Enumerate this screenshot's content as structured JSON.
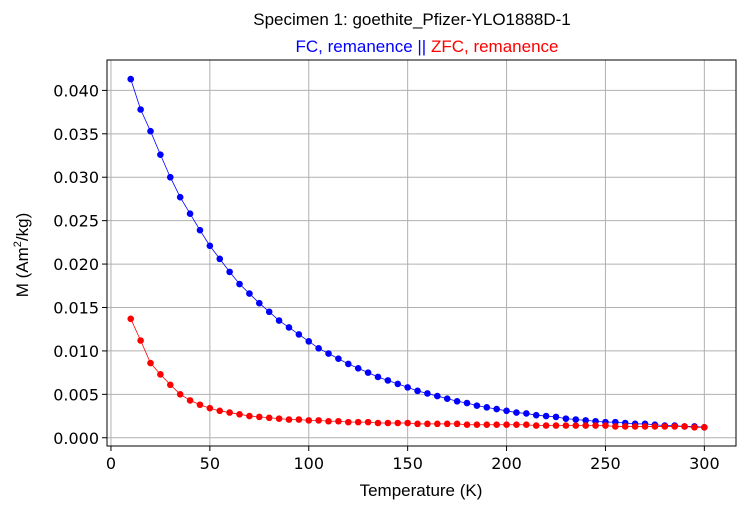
{
  "chart_data": {
    "type": "line",
    "title": "Specimen 1: goethite_Pfizer-YLO1888D-1",
    "subtitle_parts": [
      {
        "text": "FC, remanence",
        "color": "#0000ff"
      },
      {
        "text": " || ",
        "color": "#0000ff"
      },
      {
        "text": "ZFC, remanence",
        "color": "#ff0000"
      }
    ],
    "xlabel": "Temperature (K)",
    "ylabel_main": "M (Am",
    "ylabel_sup": "2",
    "ylabel_tail": "/kg)",
    "xlim": [
      -2,
      316
    ],
    "ylim": [
      -0.00095,
      0.0435
    ],
    "xticks": [
      0,
      50,
      100,
      150,
      200,
      250,
      300
    ],
    "xtick_labels": [
      "0",
      "50",
      "100",
      "150",
      "200",
      "250",
      "300"
    ],
    "yticks": [
      0.0,
      0.005,
      0.01,
      0.015,
      0.02,
      0.025,
      0.03,
      0.035,
      0.04
    ],
    "ytick_labels": [
      "0.000",
      "0.005",
      "0.010",
      "0.015",
      "0.020",
      "0.025",
      "0.030",
      "0.035",
      "0.040"
    ],
    "grid": true,
    "series": [
      {
        "name": "FC, remanence",
        "color": "#0000ff",
        "x": [
          10,
          15,
          20,
          25,
          30,
          35,
          40,
          45,
          50,
          55,
          60,
          65,
          70,
          75,
          80,
          85,
          90,
          95,
          100,
          105,
          110,
          115,
          120,
          125,
          130,
          135,
          140,
          145,
          150,
          155,
          160,
          165,
          170,
          175,
          180,
          185,
          190,
          195,
          200,
          205,
          210,
          215,
          220,
          225,
          230,
          235,
          240,
          245,
          250,
          255,
          260,
          265,
          270,
          275,
          280,
          285,
          290,
          295,
          300
        ],
        "y": [
          0.0413,
          0.0378,
          0.0353,
          0.0326,
          0.03,
          0.0277,
          0.0258,
          0.0239,
          0.0221,
          0.0206,
          0.0191,
          0.0177,
          0.0166,
          0.0155,
          0.0145,
          0.0135,
          0.0127,
          0.0119,
          0.0111,
          0.0103,
          0.0097,
          0.0091,
          0.0085,
          0.008,
          0.0075,
          0.007,
          0.0066,
          0.0062,
          0.0058,
          0.0054,
          0.0051,
          0.0048,
          0.0045,
          0.0042,
          0.004,
          0.0037,
          0.0035,
          0.0033,
          0.0031,
          0.0029,
          0.0028,
          0.0026,
          0.0025,
          0.0024,
          0.0022,
          0.0021,
          0.002,
          0.0019,
          0.0018,
          0.0018,
          0.0017,
          0.0016,
          0.0016,
          0.0015,
          0.0014,
          0.0014,
          0.0013,
          0.0013,
          0.0012
        ]
      },
      {
        "name": "ZFC, remanence",
        "color": "#ff0000",
        "x": [
          10,
          15,
          20,
          25,
          30,
          35,
          40,
          45,
          50,
          55,
          60,
          65,
          70,
          75,
          80,
          85,
          90,
          95,
          100,
          105,
          110,
          115,
          120,
          125,
          130,
          135,
          140,
          145,
          150,
          155,
          160,
          165,
          170,
          175,
          180,
          185,
          190,
          195,
          200,
          205,
          210,
          215,
          220,
          225,
          230,
          235,
          240,
          245,
          250,
          255,
          260,
          265,
          270,
          275,
          280,
          285,
          290,
          295,
          300
        ],
        "y": [
          0.0137,
          0.0112,
          0.0086,
          0.0073,
          0.0061,
          0.005,
          0.0043,
          0.0038,
          0.0034,
          0.0031,
          0.0029,
          0.0027,
          0.0025,
          0.0024,
          0.0023,
          0.0022,
          0.0021,
          0.0021,
          0.002,
          0.002,
          0.0019,
          0.0019,
          0.0018,
          0.0018,
          0.0018,
          0.0017,
          0.0017,
          0.0017,
          0.0017,
          0.0016,
          0.0016,
          0.0016,
          0.0016,
          0.0016,
          0.0015,
          0.0015,
          0.0015,
          0.0015,
          0.0015,
          0.0015,
          0.0015,
          0.0014,
          0.0014,
          0.0014,
          0.0014,
          0.0014,
          0.0014,
          0.0014,
          0.0014,
          0.0013,
          0.0013,
          0.0013,
          0.0013,
          0.0013,
          0.0013,
          0.0013,
          0.0013,
          0.0012,
          0.0012
        ]
      }
    ]
  }
}
